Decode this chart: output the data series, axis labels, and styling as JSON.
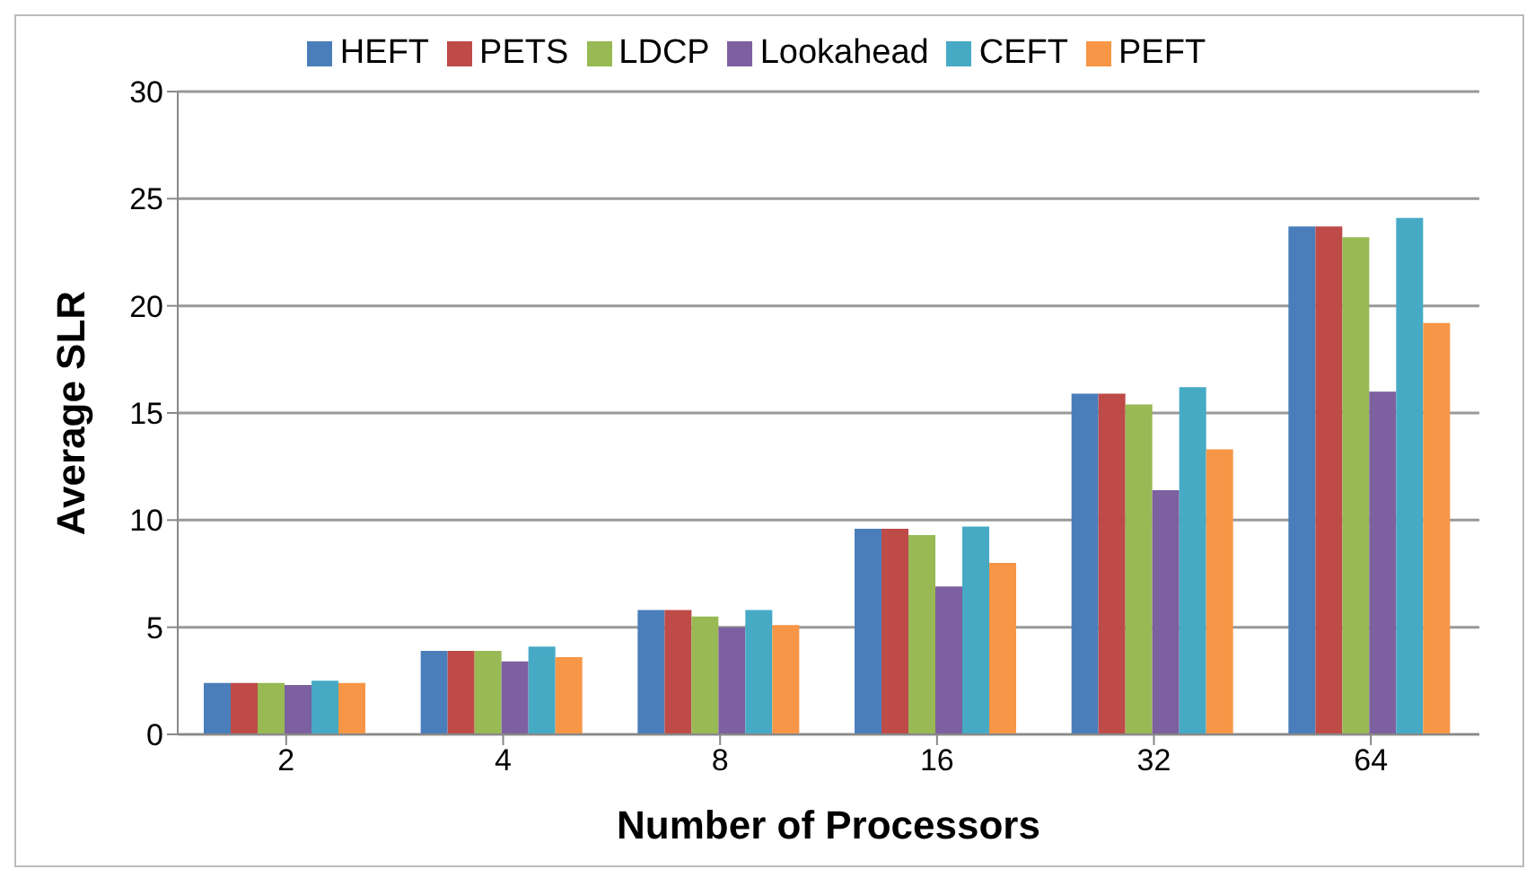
{
  "chart_data": {
    "type": "bar",
    "xlabel": "Number of Processors",
    "ylabel": "Average SLR",
    "categories": [
      "2",
      "4",
      "8",
      "16",
      "32",
      "64"
    ],
    "series": [
      {
        "name": "HEFT",
        "color": "#4a7ebb",
        "values": [
          2.4,
          3.9,
          5.8,
          9.6,
          15.9,
          23.7
        ]
      },
      {
        "name": "PETS",
        "color": "#be4b48",
        "values": [
          2.4,
          3.9,
          5.8,
          9.6,
          15.9,
          23.7
        ]
      },
      {
        "name": "LDCP",
        "color": "#98b954",
        "values": [
          2.4,
          3.9,
          5.5,
          9.3,
          15.4,
          23.2
        ]
      },
      {
        "name": "Lookahead",
        "color": "#7d60a0",
        "values": [
          2.3,
          3.4,
          5.0,
          6.9,
          11.4,
          16.0
        ]
      },
      {
        "name": "CEFT",
        "color": "#46aac5",
        "values": [
          2.5,
          4.1,
          5.8,
          9.7,
          16.2,
          24.1
        ]
      },
      {
        "name": "PEFT",
        "color": "#f79646",
        "values": [
          2.4,
          3.6,
          5.1,
          8.0,
          13.3,
          19.2
        ]
      }
    ],
    "ylim": [
      0,
      30
    ],
    "yticks": [
      0,
      5,
      10,
      15,
      20,
      25,
      30
    ],
    "grid": "y",
    "legend": "top"
  }
}
